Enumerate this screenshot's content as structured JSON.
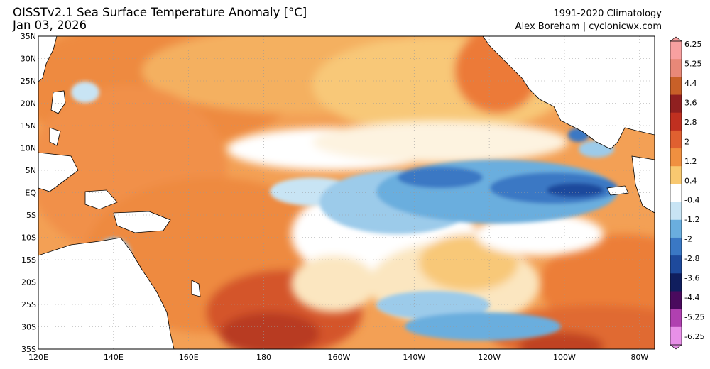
{
  "header": {
    "title": "OISSTv2.1 Sea Surface Temperature Anomaly [°C]",
    "date": "Jan 03, 2026",
    "climatology": "1991-2020 Climatology",
    "credit": "Alex Boreham | cyclonicwx.com"
  },
  "map": {
    "lon_range": [
      120,
      284
    ],
    "lat_range": [
      -35,
      35
    ],
    "lat_labels": [
      "35N",
      "30N",
      "25N",
      "20N",
      "15N",
      "10N",
      "5N",
      "EQ",
      "5S",
      "10S",
      "15S",
      "20S",
      "25S",
      "30S",
      "35S"
    ],
    "lon_labels": [
      "120E",
      "140E",
      "160E",
      "180",
      "160W",
      "140W",
      "120W",
      "100W",
      "80W"
    ]
  },
  "colorbar": {
    "labels": [
      "6.25",
      "5.25",
      "4.4",
      "3.6",
      "2.8",
      "2",
      "1.2",
      "0.4",
      "-0.4",
      "-1.2",
      "-2",
      "-2.8",
      "-3.6",
      "-4.4",
      "-5.25",
      "-6.25"
    ],
    "colors": [
      "#f8a0a0",
      "#e88878",
      "#c86028",
      "#902020",
      "#c03020",
      "#e06030",
      "#f09040",
      "#f8c870",
      "#ffffff",
      "#c8e4f4",
      "#6aaede",
      "#3a78c4",
      "#1e4a9c",
      "#101e5e",
      "#4a0a5e",
      "#b040b0",
      "#e890e8"
    ]
  }
}
